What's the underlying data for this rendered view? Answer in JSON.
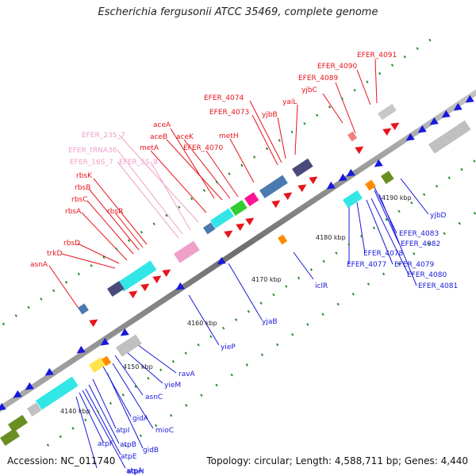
{
  "title": "Escherichia fergusonii ATCC 35469, complete genome",
  "accession": "Accession: NC_011740",
  "summary": "Topology: circular; Length: 4,588,711 bp; Genes: 4,440",
  "tick_labels": [
    "4140 kbp",
    "4150 kbp",
    "4160 kbp",
    "4170 kbp",
    "4180 kbp",
    "4190 kbp"
  ],
  "red_labels": [
    "EFER_4091",
    "EFER_4090",
    "EFER_4089",
    "yjbC",
    "yaiL",
    "yjbB",
    "EFER_4074",
    "EFER_4073",
    "metH",
    "aceA",
    "aceB",
    "aceK",
    "EFER_4070",
    "metA",
    "rbsK",
    "rbsB",
    "rbsC",
    "rbsA",
    "rbsR",
    "rbsD",
    "trkD",
    "asnA"
  ],
  "pink_labels": [
    "EFER_23S_7",
    "EFER_tRNA36",
    "EFER_16S_7",
    "EFER_5S_8"
  ],
  "blue_labels": [
    "yjbD",
    "EFER_4083",
    "EFER_4082",
    "EFER_4079",
    "EFER_4080",
    "EFER_4081",
    "EFER_4078",
    "EFER_4077",
    "iclR",
    "yjaB",
    "yieP",
    "ravA",
    "yieM",
    "asnC",
    "mioC",
    "gidA",
    "gidB",
    "atpI",
    "atpB",
    "atpE",
    "atpF",
    "atpA",
    "atpH"
  ],
  "colors": {
    "forward_gene": "#e8141c",
    "reverse_gene": "#1818dc",
    "rrna": "#33e6e6",
    "trna": "#f0a0c8",
    "backbone": "#8a8a8a",
    "gc_mark": "#2e8b2e"
  }
}
